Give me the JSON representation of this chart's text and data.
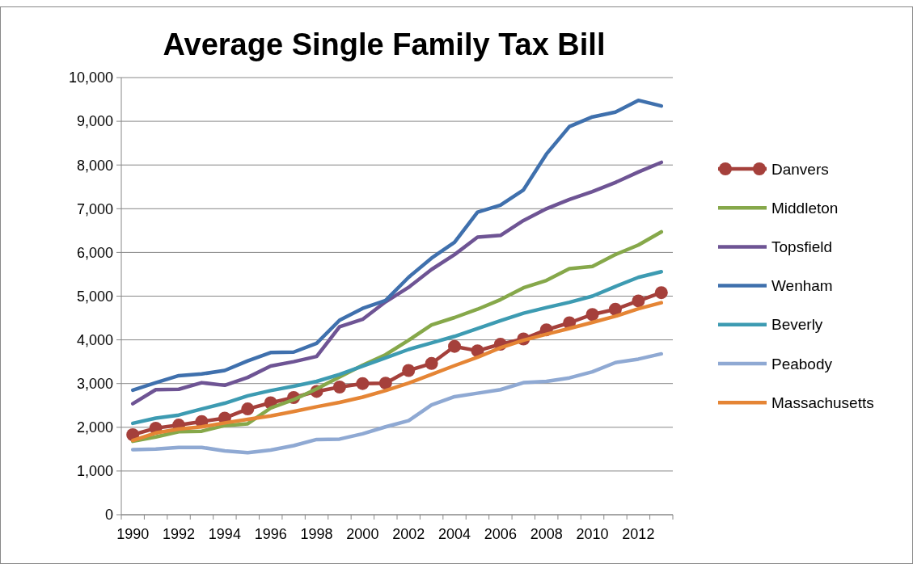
{
  "chart_data": {
    "type": "line",
    "title": "Average Single Family Tax Bill",
    "categories": [
      "1990",
      null,
      "1992",
      null,
      "1994",
      null,
      "1996",
      null,
      "1998",
      null,
      "2000",
      null,
      "2002",
      null,
      "2004",
      null,
      "2006",
      null,
      "2008",
      null,
      "2010",
      null,
      "2012",
      null
    ],
    "series": [
      {
        "name": "Danvers",
        "color": "#a5403b",
        "marker": "circle",
        "values": [
          1830,
          1980,
          2050,
          2130,
          2210,
          2420,
          2560,
          2680,
          2820,
          2920,
          3000,
          3010,
          3300,
          3460,
          3850,
          3750,
          3900,
          4020,
          4230,
          4390,
          4580,
          4700,
          4890,
          5080
        ]
      },
      {
        "name": "Middleton",
        "color": "#86a84a",
        "marker": "none",
        "values": [
          1680,
          1780,
          1900,
          1910,
          2040,
          2080,
          2440,
          2630,
          2880,
          3150,
          3420,
          3660,
          3990,
          4340,
          4510,
          4700,
          4920,
          5190,
          5360,
          5630,
          5680,
          5950,
          6170,
          6470
        ]
      },
      {
        "name": "Topsfield",
        "color": "#6e5494",
        "marker": "none",
        "values": [
          2540,
          2860,
          2870,
          3020,
          2960,
          3140,
          3400,
          3500,
          3620,
          4300,
          4470,
          4870,
          5200,
          5610,
          5950,
          6350,
          6390,
          6730,
          7000,
          7210,
          7390,
          7600,
          7840,
          8060
        ]
      },
      {
        "name": "Wenham",
        "color": "#3f70ad",
        "marker": "none",
        "values": [
          2850,
          3020,
          3180,
          3220,
          3300,
          3520,
          3710,
          3720,
          3920,
          4450,
          4720,
          4900,
          5430,
          5870,
          6230,
          6920,
          7080,
          7430,
          8250,
          8880,
          9100,
          9210,
          9480,
          9350
        ]
      },
      {
        "name": "Beverly",
        "color": "#3d9bb2",
        "marker": "none",
        "values": [
          2090,
          2210,
          2280,
          2420,
          2550,
          2720,
          2840,
          2940,
          3050,
          3210,
          3400,
          3590,
          3780,
          3930,
          4080,
          4260,
          4440,
          4610,
          4740,
          4860,
          5000,
          5220,
          5430,
          5560
        ]
      },
      {
        "name": "Peabody",
        "color": "#8fa9d3",
        "marker": "none",
        "values": [
          1490,
          1500,
          1540,
          1540,
          1460,
          1420,
          1480,
          1580,
          1720,
          1730,
          1850,
          2010,
          2150,
          2510,
          2700,
          2780,
          2860,
          3020,
          3050,
          3130,
          3270,
          3480,
          3560,
          3680
        ]
      },
      {
        "name": "Massachusetts",
        "color": "#e58535",
        "marker": "none",
        "values": [
          1700,
          1870,
          1960,
          2010,
          2100,
          2180,
          2260,
          2360,
          2470,
          2570,
          2690,
          2840,
          3010,
          3210,
          3410,
          3600,
          3820,
          3990,
          4130,
          4260,
          4400,
          4540,
          4710,
          4850
        ]
      }
    ],
    "ylim": [
      0,
      10000
    ],
    "yticks": [
      {
        "value": 0,
        "label": "0"
      },
      {
        "value": 1000,
        "label": "1,000"
      },
      {
        "value": 2000,
        "label": "2,000"
      },
      {
        "value": 3000,
        "label": "3,000"
      },
      {
        "value": 4000,
        "label": "4,000"
      },
      {
        "value": 5000,
        "label": "5,000"
      },
      {
        "value": 6000,
        "label": "6,000"
      },
      {
        "value": 7000,
        "label": "7,000"
      },
      {
        "value": 8000,
        "label": "8,000"
      },
      {
        "value": 9000,
        "label": "9,000"
      },
      {
        "value": 10000,
        "label": "10,000"
      }
    ],
    "grid": "y",
    "legend": "right",
    "line_style": "solid"
  }
}
